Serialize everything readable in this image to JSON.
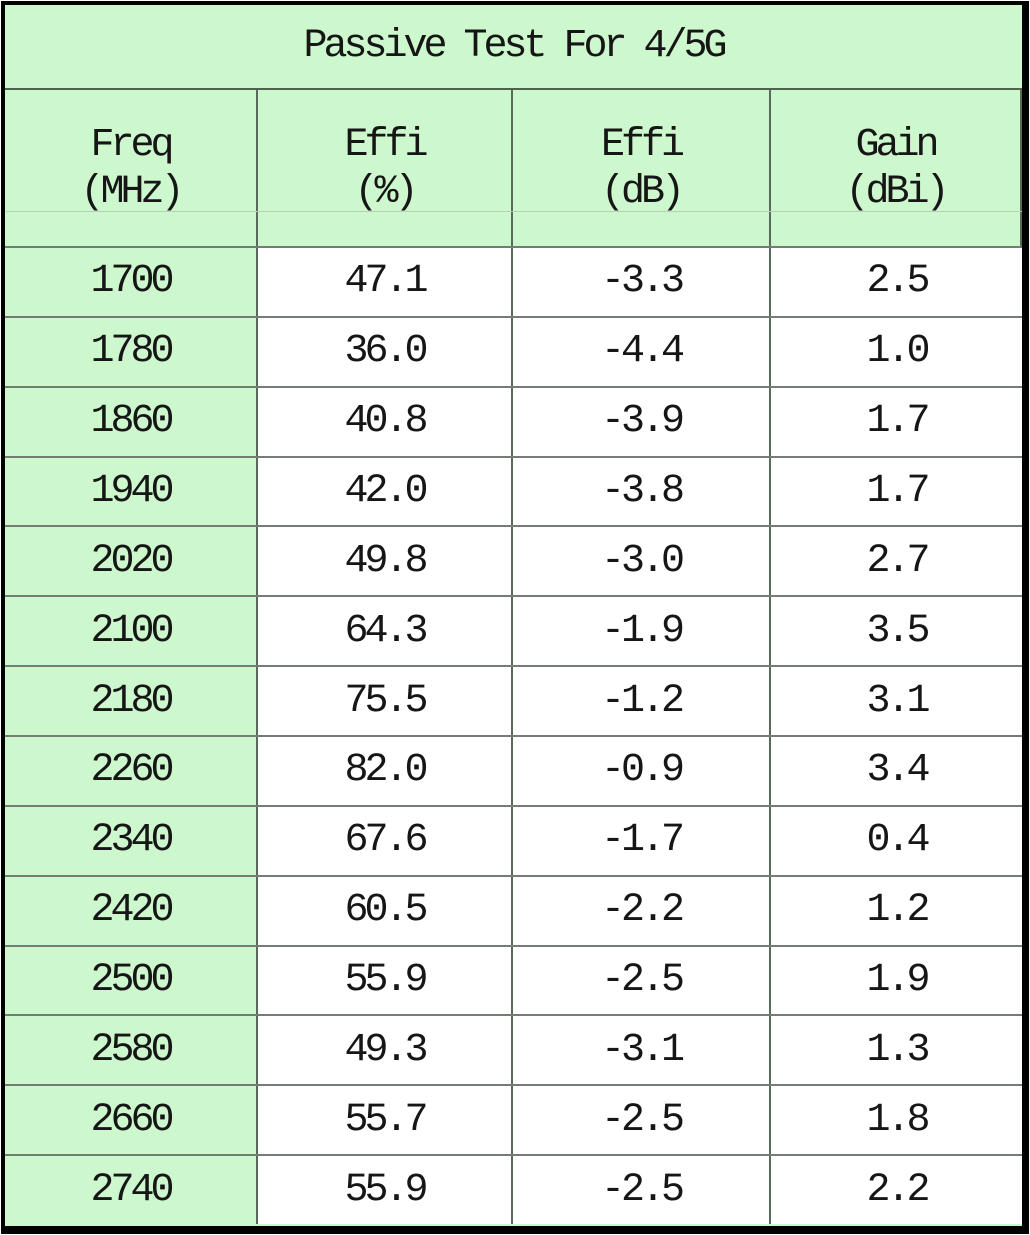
{
  "table": {
    "title": "Passive Test For 4/5G",
    "columns": [
      {
        "line1": "Freq",
        "line2": "(MHz)"
      },
      {
        "line1": "Effi",
        "line2": "(%)"
      },
      {
        "line1": "Effi",
        "line2": "(dB)"
      },
      {
        "line1": "Gain",
        "line2": "(dBi)"
      }
    ],
    "rows": [
      [
        "1700",
        "47.1",
        "-3.3",
        "2.5"
      ],
      [
        "1780",
        "36.0",
        "-4.4",
        "1.0"
      ],
      [
        "1860",
        "40.8",
        "-3.9",
        "1.7"
      ],
      [
        "1940",
        "42.0",
        "-3.8",
        "1.7"
      ],
      [
        "2020",
        "49.8",
        "-3.0",
        "2.7"
      ],
      [
        "2100",
        "64.3",
        "-1.9",
        "3.5"
      ],
      [
        "2180",
        "75.5",
        "-1.2",
        "3.1"
      ],
      [
        "2260",
        "82.0",
        "-0.9",
        "3.4"
      ],
      [
        "2340",
        "67.6",
        "-1.7",
        "0.4"
      ],
      [
        "2420",
        "60.5",
        "-2.2",
        "1.2"
      ],
      [
        "2500",
        "55.9",
        "-2.5",
        "1.9"
      ],
      [
        "2580",
        "49.3",
        "-3.1",
        "1.3"
      ],
      [
        "2660",
        "55.7",
        "-2.5",
        "1.8"
      ],
      [
        "2740",
        "55.9",
        "-2.5",
        "2.2"
      ]
    ],
    "colors": {
      "label_bg": "#cdf7cd",
      "value_bg": "#ffffff",
      "outer_border": "#000000",
      "grid_vertical": "#5a6a5a",
      "grid_horizontal": "#757c75",
      "text": "#161616"
    }
  }
}
